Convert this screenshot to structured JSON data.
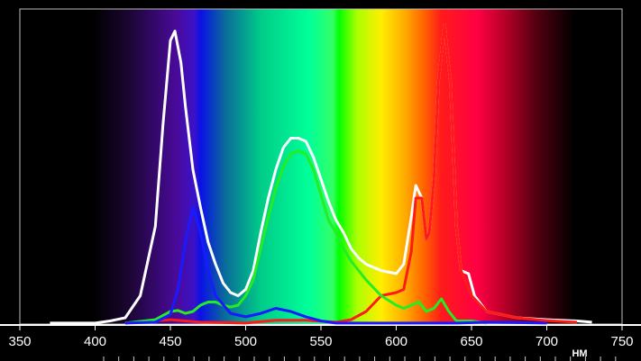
{
  "chart_data": {
    "type": "line",
    "x_label": "НМ",
    "xlim": [
      350,
      750
    ],
    "xticks": [
      350,
      400,
      450,
      500,
      550,
      600,
      650,
      700,
      750
    ],
    "ylim": [
      0,
      100
    ],
    "series": [
      {
        "name": "white",
        "color": "#ffffff",
        "x": [
          370,
          400,
          410,
          420,
          430,
          440,
          445,
          450,
          453,
          457,
          460,
          465,
          470,
          475,
          480,
          485,
          490,
          495,
          500,
          505,
          510,
          515,
          520,
          525,
          530,
          535,
          540,
          545,
          550,
          555,
          560,
          565,
          570,
          575,
          580,
          590,
          600,
          605,
          610,
          613,
          617,
          620,
          622,
          625,
          628,
          632,
          636,
          640,
          643,
          648,
          652,
          660,
          680,
          700,
          720,
          730
        ],
        "values": [
          0.3,
          0.3,
          1,
          2,
          9,
          31,
          63,
          90,
          93,
          83,
          69,
          49,
          37,
          26,
          19,
          13,
          10,
          9,
          11,
          17,
          29,
          40,
          49,
          56,
          59,
          59,
          58,
          53,
          46,
          39,
          33,
          29,
          24,
          21,
          19,
          17,
          16,
          19,
          34,
          44,
          40,
          27,
          29,
          46,
          77,
          95,
          77,
          31,
          17,
          16,
          9,
          4,
          2,
          1.4,
          1,
          0.6
        ]
      },
      {
        "name": "red",
        "color": "#ff1a1a",
        "x": [
          420,
          440,
          450,
          460,
          470,
          500,
          520,
          540,
          560,
          570,
          580,
          590,
          600,
          605,
          610,
          613,
          617,
          620,
          622,
          625,
          628,
          632,
          636,
          640,
          643,
          650,
          660,
          680,
          700,
          720
        ],
        "values": [
          0.3,
          1,
          1.4,
          1,
          0.6,
          0.3,
          1.2,
          1.2,
          0.6,
          1.4,
          4,
          9,
          10,
          11,
          23,
          40,
          40,
          27,
          29,
          46,
          77,
          95,
          77,
          31,
          17,
          9,
          4,
          2,
          1.1,
          0.6
        ]
      },
      {
        "name": "green",
        "color": "#22ee22",
        "x": [
          420,
          440,
          450,
          455,
          460,
          465,
          470,
          475,
          480,
          485,
          490,
          495,
          500,
          505,
          510,
          515,
          520,
          525,
          530,
          535,
          540,
          545,
          550,
          555,
          560,
          565,
          570,
          575,
          580,
          590,
          600,
          605,
          610,
          615,
          620,
          625,
          630,
          635,
          640,
          650,
          660
        ],
        "values": [
          0.3,
          1.4,
          4,
          4.3,
          3.4,
          4,
          6,
          7,
          7,
          6,
          5.4,
          6,
          9,
          14,
          24,
          34,
          43,
          50,
          54,
          55,
          54,
          49,
          41,
          33,
          29,
          24,
          20,
          17,
          14,
          9,
          6,
          5,
          6,
          7,
          4,
          5,
          8,
          4,
          1,
          1,
          0.3
        ]
      },
      {
        "name": "blue",
        "color": "#1a1aff",
        "x": [
          420,
          440,
          450,
          455,
          460,
          465,
          470,
          475,
          480,
          490,
          500,
          510,
          520,
          530,
          540,
          550,
          560,
          600,
          640,
          660,
          700
        ],
        "values": [
          0.3,
          0.6,
          3,
          11,
          26,
          37,
          29,
          17,
          9,
          3.4,
          2.3,
          3.4,
          5,
          4,
          2.3,
          1,
          0.3,
          0.3,
          0.3,
          0.6,
          0.3
        ]
      }
    ]
  }
}
